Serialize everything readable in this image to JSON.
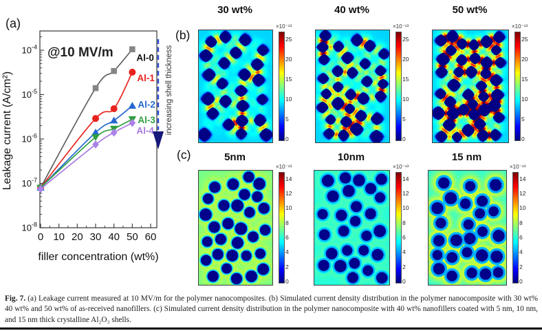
{
  "chart_data": {
    "type": "line",
    "panel_label": "(a)",
    "annotation": "@10 MV/m",
    "arrow_label": "increasing shell thickness",
    "xlabel": "filler concentration (wt%)",
    "ylabel": "Leakage current (A/cm²)",
    "x": [
      0,
      30,
      40,
      50
    ],
    "x_ticks": [
      0,
      10,
      20,
      30,
      40,
      50,
      60
    ],
    "y_tick_exponents": [
      -4,
      -5,
      -6,
      -7,
      -8
    ],
    "xlim": [
      0,
      63.75
    ],
    "ylim": [
      1e-08,
      0.00027
    ],
    "y_scale": "log",
    "series": [
      {
        "name": "Al-0",
        "marker": "square",
        "color": "#858585",
        "line_color": "#5f5f5f",
        "label_color": "#111111",
        "values": [
          8e-08,
          1.4e-05,
          3.4e-05,
          0.000105
        ]
      },
      {
        "name": "Al-1",
        "marker": "circle",
        "color": "#e8231d",
        "line_color": "#e8231d",
        "label_color": "#e8231d",
        "values": [
          8e-08,
          2.9e-06,
          4.8e-06,
          3.2e-05
        ]
      },
      {
        "name": "Al-2",
        "marker": "triangle-up",
        "color": "#2468cf",
        "line_color": "#2468cf",
        "label_color": "#2468cf",
        "values": [
          8e-08,
          1.4e-06,
          2.6e-06,
          5.6e-06
        ]
      },
      {
        "name": "Al-3",
        "marker": "triangle-down",
        "color": "#2f9e3f",
        "line_color": "#2f9e3f",
        "label_color": "#2f9e3f",
        "values": [
          8e-08,
          1.1e-06,
          1.7e-06,
          2.8e-06
        ]
      },
      {
        "name": "Al-4",
        "marker": "diamond",
        "color": "#ab82e8",
        "line_color": "#a678e0",
        "label_color": "#a678e0",
        "values": [
          7.5e-08,
          7.5e-07,
          1.4e-06,
          2.3e-06
        ]
      }
    ]
  },
  "panel_b": {
    "label": "(b)",
    "colormap": "jet",
    "colorbar_exponent": "×10⁻¹³",
    "colorbar_ticks": [
      0,
      5,
      10,
      15,
      20,
      25
    ],
    "vmax": 27,
    "maps": [
      {
        "title": "30 wt%",
        "particles": 24,
        "seed": 101
      },
      {
        "title": "40 wt%",
        "particles": 31,
        "seed": 202
      },
      {
        "title": "50 wt%",
        "particles": 40,
        "seed": 303
      }
    ]
  },
  "panel_c": {
    "label": "(c)",
    "colormap": "jet",
    "colorbar_exponent": "×10⁻¹³",
    "colorbar_ticks": [
      0,
      2,
      4,
      6,
      8,
      10,
      12,
      14
    ],
    "vmax": 15,
    "maps": [
      {
        "title": "5nm",
        "particles": 30,
        "seed": 404
      },
      {
        "title": "10nm",
        "particles": 27,
        "seed": 505
      },
      {
        "title": "15 nm",
        "particles": 26,
        "seed": 606
      }
    ]
  },
  "caption": {
    "label": "Fig. 7.",
    "text": "(a) Leakage current measured at 10 MV/m for the polymer nanocomposites. (b) Simulated current density distribution in the polymer nanocomposite with 30 wt% 40 wt% and 50 wt% of as-received nanofillers. (c) Simulated current density distribution in the polymer nanocomposite with 40 wt% nanofillers coated with 5 nm, 10 nm, and 15 nm thick crystalline Al₂O₃ shells."
  }
}
